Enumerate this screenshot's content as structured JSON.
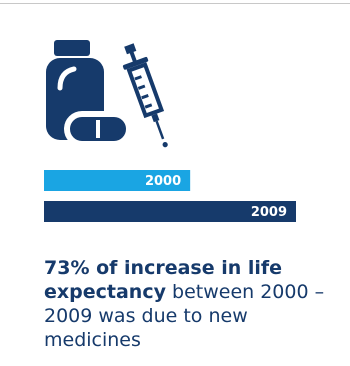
{
  "colors": {
    "navy": "#163a6b",
    "light_blue": "#1aa5e3",
    "divider": "#c8c8c8",
    "background": "#ffffff"
  },
  "icon": {
    "name": "medicine-bottle-and-syringe-icon"
  },
  "chart_data": {
    "type": "bar",
    "orientation": "horizontal",
    "categories": [
      "2000",
      "2009"
    ],
    "values": [
      58,
      100
    ],
    "value_unit": "relative bar length, percent of longest bar (estimated)",
    "xlim": [
      0,
      100
    ],
    "grid": false,
    "axes_visible": false,
    "labels_inside_bars": true,
    "series": [
      {
        "values": [
          58,
          100
        ],
        "colors": [
          "#1aa5e3",
          "#163a6b"
        ]
      }
    ]
  },
  "caption": {
    "bold_text": "73% of increase in life expectancy",
    "rest_text": " between 2000 – 2009 was due to new medicines"
  }
}
